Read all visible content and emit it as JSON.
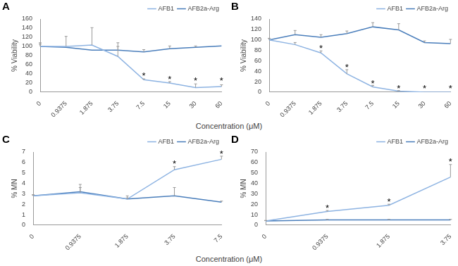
{
  "chart_data": [
    {
      "type": "line",
      "title": "A",
      "y_label": "% Viability",
      "x_label": "Concentration (μM)",
      "categories": [
        "0",
        "0.9375",
        "1.875",
        "3.75",
        "7.5",
        "15",
        "30",
        "60"
      ],
      "ylim": [
        0,
        160
      ],
      "yticks": [
        0,
        20,
        40,
        60,
        80,
        100,
        120,
        140,
        160
      ],
      "grid": false,
      "legend": "upper right",
      "series": [
        {
          "name": "AFB1",
          "color": "#8db3e2",
          "line_style": "solid",
          "marker": "none",
          "values": [
            100,
            100,
            103,
            78,
            27,
            20,
            10,
            12
          ],
          "errors": [
            8,
            22,
            38,
            30,
            2,
            3,
            8,
            4
          ]
        },
        {
          "name": "AFB2a-Arg",
          "color": "#4a7ebb",
          "line_style": "solid",
          "marker": "none",
          "values": [
            100,
            98,
            92,
            92,
            88,
            95,
            98,
            101
          ],
          "errors": [
            5,
            0,
            0,
            8,
            5,
            6,
            3,
            0
          ]
        }
      ],
      "annotations": [
        {
          "x": "7.5",
          "y": 35,
          "text": "*"
        },
        {
          "x": "15",
          "y": 27,
          "text": "*"
        },
        {
          "x": "30",
          "y": 24,
          "text": "*"
        },
        {
          "x": "60",
          "y": 24,
          "text": "*"
        }
      ]
    },
    {
      "type": "line",
      "title": "B",
      "y_label": "% Viability",
      "categories": [
        "0",
        "0.9375",
        "1.875",
        "3.75",
        "7.5",
        "15",
        "30",
        "60"
      ],
      "ylim": [
        0,
        140
      ],
      "yticks": [
        0,
        20,
        40,
        60,
        80,
        100,
        120,
        140
      ],
      "grid": false,
      "legend": "upper right",
      "series": [
        {
          "name": "AFB1",
          "color": "#8db3e2",
          "line_style": "solid",
          "marker": "none",
          "values": [
            100,
            91,
            75,
            35,
            10,
            2,
            0,
            0
          ],
          "errors": [
            3,
            4,
            4,
            8,
            3,
            1,
            0,
            0
          ]
        },
        {
          "name": "AFB2a-Arg",
          "color": "#4a7ebb",
          "line_style": "solid",
          "marker": "none",
          "values": [
            100,
            110,
            105,
            112,
            125,
            119,
            95,
            93
          ],
          "errors": [
            3,
            8,
            5,
            5,
            8,
            12,
            3,
            8
          ]
        }
      ],
      "annotations": [
        {
          "x": "1.875",
          "y": 83,
          "text": "*"
        },
        {
          "x": "3.75",
          "y": 46,
          "text": "*"
        },
        {
          "x": "7.5",
          "y": 16,
          "text": "*"
        },
        {
          "x": "15",
          "y": 6,
          "text": "*"
        },
        {
          "x": "30",
          "y": 6,
          "text": "*"
        },
        {
          "x": "60",
          "y": 6,
          "text": "*"
        }
      ]
    },
    {
      "type": "line",
      "title": "C",
      "y_label": "% MN",
      "x_label": "Concentration (μM)",
      "categories": [
        "0",
        "0.9375",
        "1.875",
        "3.75",
        "7.5"
      ],
      "ylim": [
        0,
        7
      ],
      "yticks": [
        0,
        1,
        2,
        3,
        4,
        5,
        6,
        7
      ],
      "grid": false,
      "legend": "upper right",
      "series": [
        {
          "name": "AFB1",
          "color": "#8db3e2",
          "line_style": "solid",
          "marker": "none",
          "values": [
            2.8,
            3.1,
            2.5,
            5.3,
            6.3
          ],
          "errors": [
            0.1,
            0.5,
            0.3,
            0.3,
            0.3
          ]
        },
        {
          "name": "AFB2a-Arg",
          "color": "#4a7ebb",
          "line_style": "solid",
          "marker": "none",
          "values": [
            2.8,
            3.2,
            2.5,
            2.8,
            2.2
          ],
          "errors": [
            0.1,
            0.7,
            0.1,
            0.8,
            0.1
          ]
        }
      ],
      "annotations": [
        {
          "x": "3.75",
          "y": 5.8,
          "text": "*"
        },
        {
          "x": "7.5",
          "y": 6.8,
          "text": "*"
        }
      ]
    },
    {
      "type": "line",
      "title": "D",
      "y_label": "% MN",
      "categories": [
        "0",
        "0.9375",
        "1.875",
        "3.75"
      ],
      "ylim": [
        0,
        70
      ],
      "yticks": [
        0,
        10,
        20,
        30,
        40,
        50,
        60,
        70
      ],
      "grid": false,
      "legend": "upper right",
      "series": [
        {
          "name": "AFB1",
          "color": "#8db3e2",
          "line_style": "solid",
          "marker": "none",
          "values": [
            4,
            13,
            19,
            46
          ],
          "errors": [
            0.5,
            1,
            1,
            12
          ]
        },
        {
          "name": "AFB2a-Arg",
          "color": "#4a7ebb",
          "line_style": "solid",
          "marker": "none",
          "values": [
            4,
            5,
            5,
            5
          ],
          "errors": [
            0.3,
            0.5,
            0.5,
            0.5
          ]
        }
      ],
      "annotations": [
        {
          "x": "0.9375",
          "y": 16,
          "text": "*"
        },
        {
          "x": "1.875",
          "y": 22,
          "text": "*"
        },
        {
          "x": "3.75",
          "y": 60,
          "text": "*"
        }
      ]
    }
  ]
}
